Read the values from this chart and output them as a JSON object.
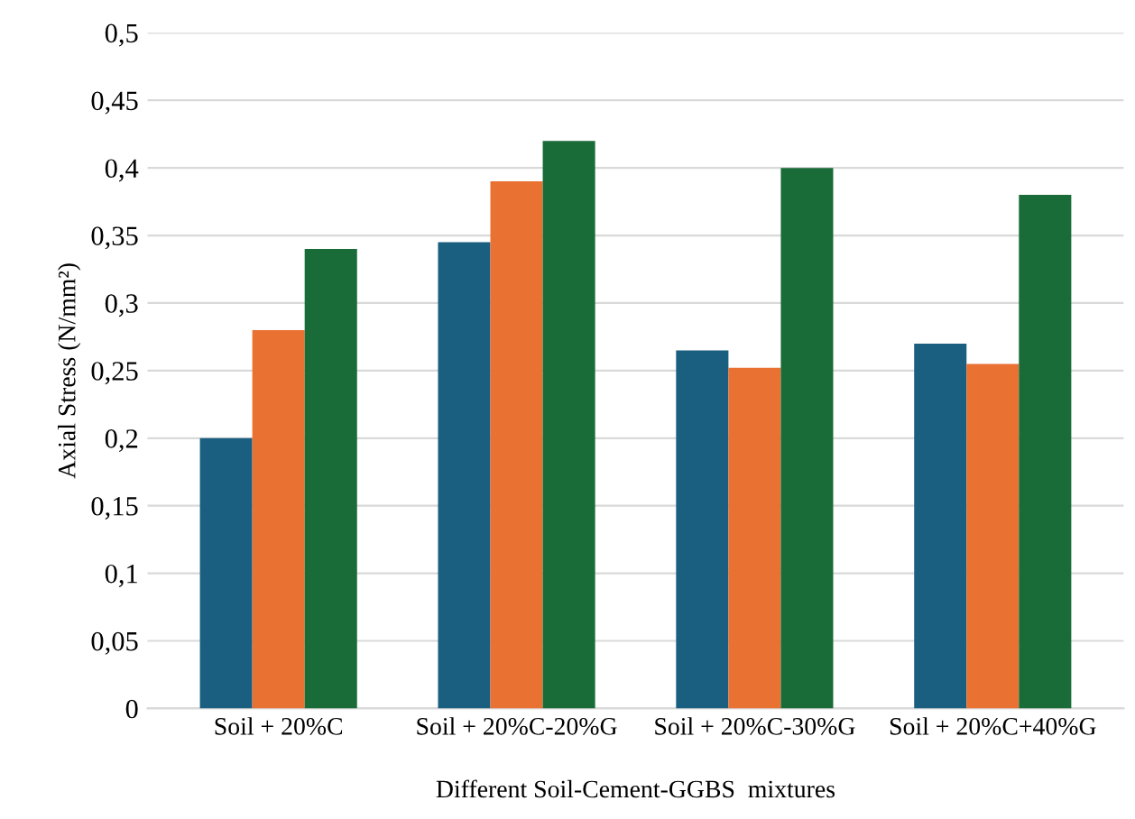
{
  "chart_data": {
    "type": "bar",
    "categories": [
      "Soil + 20%C",
      "Soil + 20%C-20%G",
      "Soil + 20%C-30%G",
      "Soil + 20%C+40%G"
    ],
    "series": [
      {
        "color": "#1a5f80",
        "values": [
          0.2,
          0.345,
          0.265,
          0.27
        ]
      },
      {
        "color": "#e97132",
        "values": [
          0.28,
          0.39,
          0.252,
          0.255
        ]
      },
      {
        "color": "#196b37",
        "values": [
          0.34,
          0.42,
          0.4,
          0.38
        ]
      }
    ],
    "xlabel": "Different Soil-Cement-GGBS  mixtures",
    "ylabel": "Axial Stress (N/mm²)",
    "ylim": [
      0,
      0.5
    ],
    "yticks": [
      0,
      {
        "value": 0.05,
        "label": "0,05"
      },
      {
        "value": 0.1,
        "label": "0,1"
      },
      {
        "value": 0.15,
        "label": "0,15"
      },
      {
        "value": 0.2,
        "label": "0,2"
      },
      {
        "value": 0.25,
        "label": "0,25"
      },
      {
        "value": 0.3,
        "label": "0,3"
      },
      {
        "value": 0.35,
        "label": "0,35"
      },
      {
        "value": 0.4,
        "label": "0,4"
      },
      {
        "value": 0.45,
        "label": "0,45"
      },
      {
        "value": 0.5,
        "label": "0,5"
      }
    ],
    "grid": "y"
  }
}
